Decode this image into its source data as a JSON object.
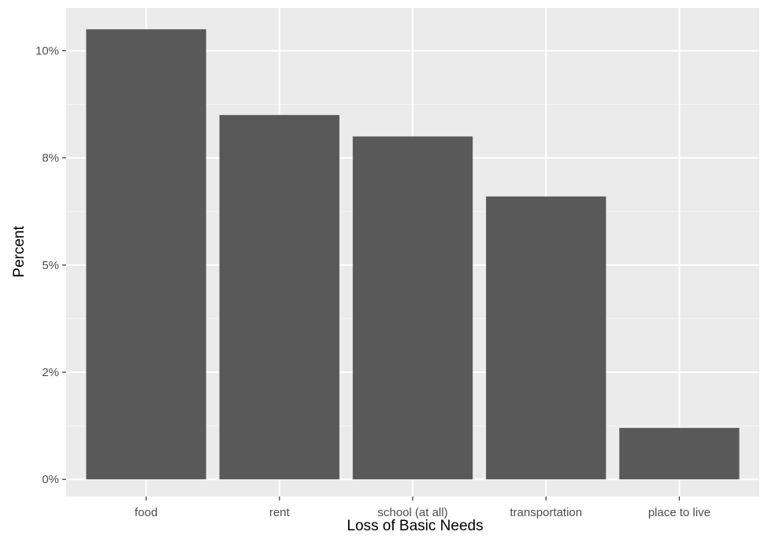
{
  "chart_data": {
    "type": "bar",
    "title": "",
    "xlabel": "Loss of Basic Needs",
    "ylabel": "Percent",
    "categories": [
      "food",
      "rent",
      "school (at all)",
      "transportation",
      "place to live"
    ],
    "values": [
      10.5,
      8.5,
      8.0,
      6.6,
      1.2
    ],
    "ylim": [
      -0.4,
      11.0
    ],
    "y_ticks": [
      0,
      2.5,
      5,
      7.5,
      10
    ],
    "y_tick_labels": [
      "0%",
      "2%",
      "5%",
      "8%",
      "10%"
    ],
    "grid": true,
    "legend": "none",
    "colors": {
      "bar": "#595959",
      "panel_background": "#ebebeb",
      "grid_major": "#ffffff",
      "grid_minor": "#f5f5f5"
    }
  }
}
